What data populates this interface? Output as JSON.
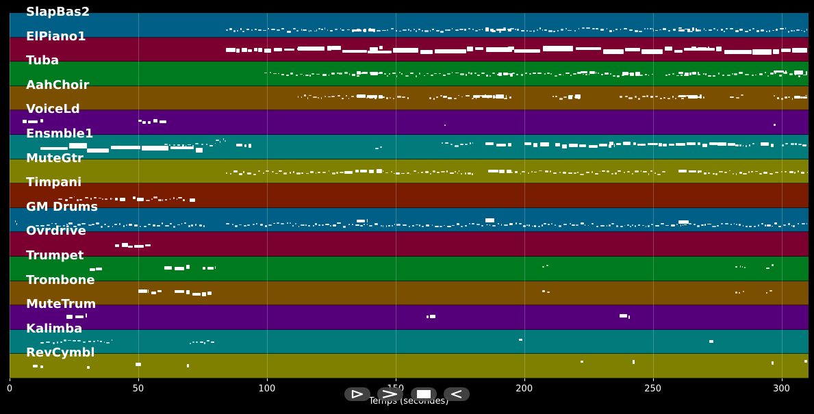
{
  "xaxis": {
    "label": "Temps (secondes)",
    "ticks": [
      {
        "value": 0,
        "label": "0"
      },
      {
        "value": 50,
        "label": "50"
      },
      {
        "value": 100,
        "label": "100"
      },
      {
        "value": 150,
        "label": "150"
      },
      {
        "value": 200,
        "label": "200"
      },
      {
        "value": 250,
        "label": "250"
      },
      {
        "value": 300,
        "label": "300"
      }
    ],
    "min": 0,
    "max": 310.5
  },
  "controls": [
    {
      "name": "play-button",
      "icon": "play-outline-icon"
    },
    {
      "name": "forward-button",
      "icon": "chevron-right-icon"
    },
    {
      "name": "stop-button",
      "icon": "stop-square-icon"
    },
    {
      "name": "back-button",
      "icon": "play-reverse-icon"
    }
  ],
  "tracks": [
    {
      "name": "SlapBas2",
      "color": "#005f86",
      "segments": [
        [
          84,
          170,
          0.7,
          "light"
        ],
        [
          170,
          250,
          0.7,
          "light"
        ],
        [
          250,
          310,
          0.7,
          "light"
        ],
        [
          133,
          142,
          0.7,
          "bold"
        ],
        [
          185,
          195,
          0.7,
          "bold"
        ],
        [
          260,
          268,
          0.7,
          "bold"
        ]
      ]
    },
    {
      "name": "ElPiano1",
      "color": "#7b0030",
      "segments": [
        [
          84,
          112,
          0.52,
          "bold"
        ],
        [
          112,
          125,
          0.52,
          "chunk"
        ],
        [
          125,
          310,
          0.52,
          "chunk"
        ],
        [
          140,
          145,
          0.45,
          "bold"
        ],
        [
          190,
          196,
          0.45,
          "bold"
        ],
        [
          265,
          272,
          0.45,
          "bold"
        ]
      ]
    },
    {
      "name": "Tuba",
      "color": "#007a1e",
      "segments": [
        [
          99,
          128,
          0.52,
          "light"
        ],
        [
          128,
          160,
          0.52,
          "light"
        ],
        [
          161,
          215,
          0.52,
          "light"
        ],
        [
          215,
          250,
          0.52,
          "light"
        ],
        [
          255,
          310,
          0.52,
          "light"
        ],
        [
          135,
          145,
          0.5,
          "bold"
        ],
        [
          190,
          196,
          0.5,
          "bold"
        ],
        [
          238,
          245,
          0.5,
          "bold"
        ],
        [
          260,
          268,
          0.5,
          "bold"
        ],
        [
          297,
          302,
          0.42,
          "bold"
        ],
        [
          222,
          228,
          0.42,
          "bold"
        ],
        [
          305,
          310,
          0.42,
          "bold"
        ]
      ]
    },
    {
      "name": "AahChoir",
      "color": "#7a4f00",
      "segments": [
        [
          112,
          155,
          0.45,
          "light"
        ],
        [
          135,
          145,
          0.42,
          "bold"
        ],
        [
          163,
          195,
          0.45,
          "light"
        ],
        [
          180,
          193,
          0.45,
          "bold"
        ],
        [
          211,
          222,
          0.45,
          "light"
        ],
        [
          217,
          222,
          0.45,
          "bold"
        ],
        [
          237,
          270,
          0.45,
          "light"
        ],
        [
          260,
          269,
          0.45,
          "bold"
        ],
        [
          280,
          286,
          0.45,
          "light"
        ],
        [
          297,
          310,
          0.45,
          "light"
        ],
        [
          305,
          310,
          0.45,
          "bold"
        ]
      ]
    },
    {
      "name": "VoiceLd",
      "color": "#55007a",
      "segments": [
        [
          5,
          13,
          0.45,
          "bold"
        ],
        [
          50,
          61,
          0.45,
          "bold"
        ],
        [
          169,
          169.6,
          0.55,
          "light"
        ],
        [
          297,
          297.6,
          0.55,
          "light"
        ]
      ]
    },
    {
      "name": "Ensmble1",
      "color": "#007a7a",
      "segments": [
        [
          12,
          30,
          0.5,
          "chunk"
        ],
        [
          30,
          75,
          0.6,
          "chunk"
        ],
        [
          60,
          80,
          0.4,
          "light"
        ],
        [
          80,
          84,
          0.25,
          "light"
        ],
        [
          88,
          94,
          0.4,
          "bold"
        ],
        [
          142,
          145,
          0.5,
          "light"
        ],
        [
          168,
          180,
          0.4,
          "light"
        ],
        [
          185,
          195,
          0.4,
          "bold"
        ],
        [
          200,
          210,
          0.4,
          "bold"
        ],
        [
          212,
          235,
          0.45,
          "bold"
        ],
        [
          233,
          245,
          0.38,
          "bold"
        ],
        [
          245,
          275,
          0.4,
          "bold"
        ],
        [
          275,
          282,
          0.4,
          "bold"
        ],
        [
          282,
          290,
          0.4,
          "light"
        ],
        [
          292,
          297,
          0.4,
          "bold"
        ],
        [
          300,
          310,
          0.4,
          "light"
        ]
      ]
    },
    {
      "name": "MuteGtr",
      "color": "#7f7f00",
      "segments": [
        [
          84,
          130,
          0.55,
          "light"
        ],
        [
          130,
          145,
          0.5,
          "bold"
        ],
        [
          145,
          180,
          0.55,
          "light"
        ],
        [
          186,
          195,
          0.5,
          "bold"
        ],
        [
          195,
          255,
          0.55,
          "light"
        ],
        [
          260,
          268,
          0.5,
          "bold"
        ],
        [
          268,
          310,
          0.55,
          "light"
        ]
      ]
    },
    {
      "name": "Timpani",
      "color": "#7a1c00",
      "segments": [
        [
          19,
          40,
          0.62,
          "light"
        ],
        [
          41,
          45,
          0.62,
          "bold"
        ],
        [
          48,
          53,
          0.62,
          "bold"
        ],
        [
          53,
          68,
          0.62,
          "light"
        ],
        [
          70,
          72,
          0.7,
          "bold"
        ]
      ]
    },
    {
      "name": "GM Drums",
      "color": "#005f86",
      "segments": [
        [
          2,
          3,
          0.6,
          "light"
        ],
        [
          10,
          12,
          0.7,
          "light"
        ],
        [
          12,
          32,
          0.7,
          "light"
        ],
        [
          32,
          76,
          0.7,
          "light"
        ],
        [
          84,
          310,
          0.7,
          "light"
        ],
        [
          135,
          139,
          0.55,
          "bold"
        ],
        [
          185,
          189,
          0.55,
          "bold"
        ],
        [
          260,
          264,
          0.55,
          "bold"
        ]
      ]
    },
    {
      "name": "Ovrdrive",
      "color": "#7b0030",
      "segments": [
        [
          41,
          46,
          0.55,
          "bold"
        ],
        [
          46,
          55,
          0.57,
          "bold"
        ]
      ]
    },
    {
      "name": "Trumpet",
      "color": "#007a1e",
      "segments": [
        [
          31,
          36,
          0.5,
          "bold"
        ],
        [
          60,
          63,
          0.45,
          "bold"
        ],
        [
          64,
          70,
          0.45,
          "bold"
        ],
        [
          75,
          80,
          0.47,
          "bold"
        ],
        [
          207,
          210,
          0.4,
          "light"
        ],
        [
          282,
          286,
          0.4,
          "light"
        ],
        [
          294,
          297,
          0.4,
          "light"
        ]
      ]
    },
    {
      "name": "Trombone",
      "color": "#7a4f00",
      "segments": [
        [
          50,
          54,
          0.45,
          "bold"
        ],
        [
          55,
          59,
          0.45,
          "bold"
        ],
        [
          64,
          70,
          0.45,
          "bold"
        ],
        [
          71,
          79,
          0.52,
          "bold"
        ],
        [
          207,
          210,
          0.48,
          "light"
        ],
        [
          282,
          286,
          0.48,
          "light"
        ],
        [
          294,
          297,
          0.48,
          "light"
        ]
      ]
    },
    {
      "name": "MuteTrum",
      "color": "#55007a",
      "segments": [
        [
          22,
          30,
          0.45,
          "bold"
        ],
        [
          162,
          166,
          0.45,
          "bold"
        ],
        [
          237,
          241,
          0.45,
          "bold"
        ]
      ]
    },
    {
      "name": "Kalimba",
      "color": "#007a7a",
      "segments": [
        [
          12,
          40,
          0.5,
          "light"
        ],
        [
          70,
          80,
          0.5,
          "light"
        ],
        [
          198,
          199.5,
          0.45,
          "bold"
        ],
        [
          272,
          273.5,
          0.45,
          "bold"
        ]
      ]
    },
    {
      "name": "RevCymbl",
      "color": "#7f7f00",
      "segments": [
        [
          9,
          13,
          0.5,
          "bold"
        ],
        [
          30,
          31,
          0.5,
          "bold"
        ],
        [
          49,
          51,
          0.45,
          "bold"
        ],
        [
          69,
          70,
          0.45,
          "bold"
        ],
        [
          222,
          223,
          0.35,
          "bold"
        ],
        [
          242,
          243,
          0.35,
          "bold"
        ],
        [
          296,
          297,
          0.35,
          "bold"
        ],
        [
          309,
          310,
          0.35,
          "bold"
        ]
      ]
    }
  ]
}
